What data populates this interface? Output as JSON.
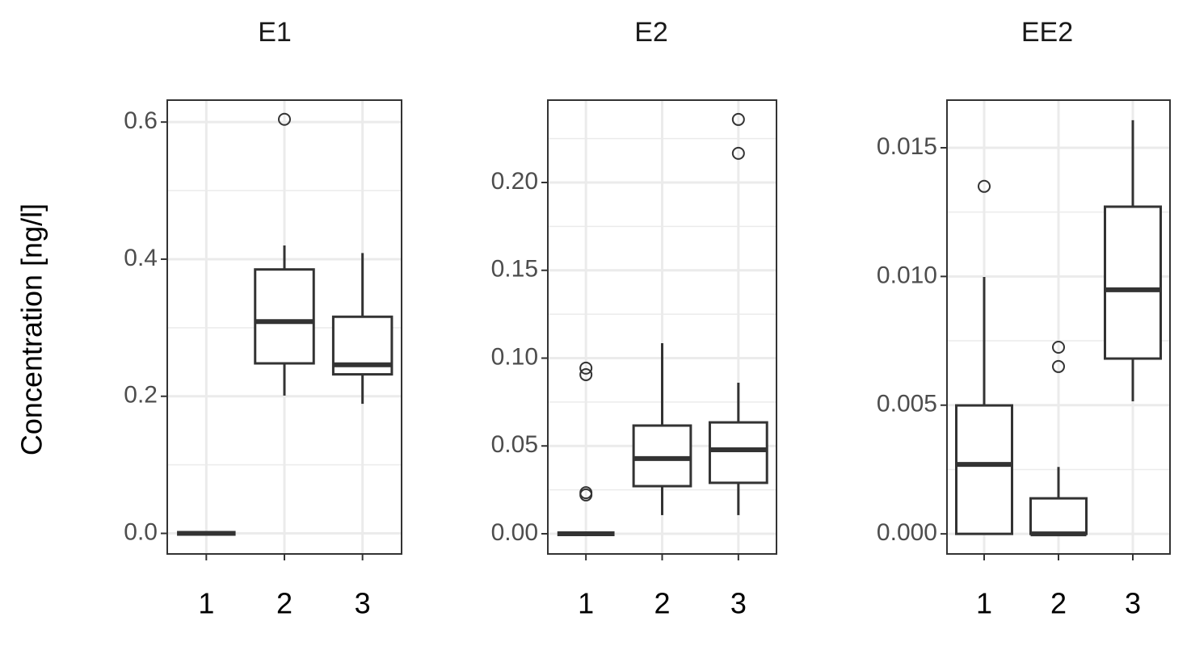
{
  "chart_data": [
    {
      "type": "boxplot",
      "title": "E1",
      "ylabel": "Concentration [ng/l]",
      "categories": [
        "1",
        "2",
        "3"
      ],
      "boxes": [
        {
          "min": 0,
          "q1": 0,
          "median": 0,
          "q3": 0,
          "max": 0,
          "outliers": []
        },
        {
          "min": 0.201,
          "q1": 0.248,
          "median": 0.309,
          "q3": 0.385,
          "max": 0.42,
          "outliers": [
            0.604
          ]
        },
        {
          "min": 0.189,
          "q1": 0.232,
          "median": 0.246,
          "q3": 0.316,
          "max": 0.409,
          "outliers": []
        }
      ],
      "ylim": [
        -0.03,
        0.632
      ],
      "yticks": [
        {
          "value": 0,
          "label": "0.0"
        },
        0.2,
        0.4,
        0.6
      ],
      "minor_yticks": [
        0.1,
        0.3,
        0.5
      ],
      "grid": true
    },
    {
      "type": "boxplot",
      "title": "E2",
      "categories": [
        "1",
        "2",
        "3"
      ],
      "boxes": [
        {
          "min": 0,
          "q1": 0,
          "median": 0,
          "q3": 0,
          "max": 0,
          "outliers": [
            0.0943,
            0.0906,
            0.0234,
            0.0221
          ]
        },
        {
          "min": 0.0106,
          "q1": 0.0271,
          "median": 0.0428,
          "q3": 0.0616,
          "max": 0.1085,
          "outliers": []
        },
        {
          "min": 0.0106,
          "q1": 0.029,
          "median": 0.0478,
          "q3": 0.0634,
          "max": 0.086,
          "outliers": [
            0.2359,
            0.2166
          ]
        }
      ],
      "ylim": [
        -0.0115,
        0.2469
      ],
      "yticks": [
        {
          "value": 0,
          "label": "0.00"
        },
        0.05,
        {
          "value": 0.1,
          "label": "0.10"
        },
        0.15,
        {
          "value": 0.2,
          "label": "0.20"
        }
      ],
      "minor_yticks": [
        0.025,
        0.075,
        0.125,
        0.175,
        0.225
      ],
      "grid": true
    },
    {
      "type": "boxplot",
      "title": "EE2",
      "categories": [
        "1",
        "2",
        "3"
      ],
      "boxes": [
        {
          "min": 0,
          "q1": 0,
          "median": 0.0027,
          "q3": 0.00499,
          "max": 0.00998,
          "outliers": [
            0.0135
          ]
        },
        {
          "min": 0,
          "q1": 0,
          "median": 0,
          "q3": 0.00138,
          "max": 0.0026,
          "outliers": [
            0.00725,
            0.0065
          ]
        },
        {
          "min": 0.00515,
          "q1": 0.00681,
          "median": 0.00948,
          "q3": 0.01271,
          "max": 0.01607,
          "outliers": []
        }
      ],
      "ylim": [
        -0.00078,
        0.01685
      ],
      "yticks": [
        {
          "value": 0,
          "label": "0.000"
        },
        0.005,
        {
          "value": 0.01,
          "label": "0.010"
        },
        0.015
      ],
      "minor_yticks": [
        0.0025,
        0.0075,
        0.0125
      ],
      "grid": true
    }
  ]
}
